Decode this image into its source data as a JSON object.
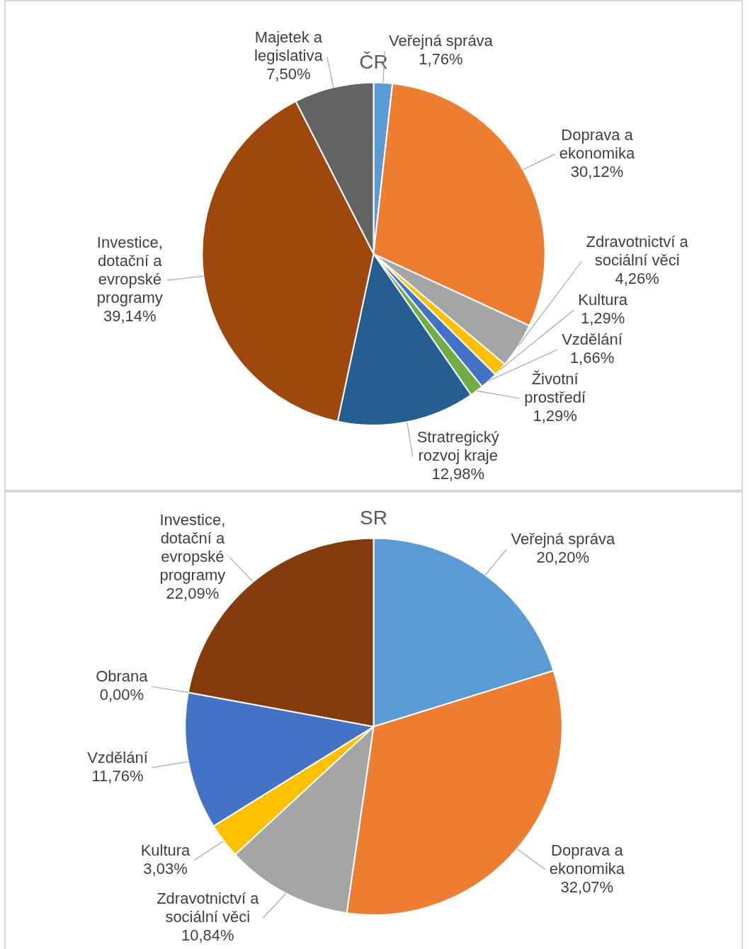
{
  "chart_data": [
    {
      "type": "pie",
      "title": "ČR",
      "categories": [
        "Veřejná správa",
        "Doprava a ekonomika",
        "Zdravotnictví a sociální věci",
        "Kultura",
        "Vzdělání",
        "Životní prostředí",
        "Stratregický rozvoj kraje",
        "Investice, dotační a evropské programy",
        "Majetek a legislativa"
      ],
      "values": [
        1.76,
        30.12,
        4.26,
        1.29,
        1.66,
        1.29,
        12.98,
        39.14,
        7.5
      ],
      "value_labels": [
        "1,76%",
        "30,12%",
        "4,26%",
        "1,29%",
        "1,66%",
        "1,29%",
        "12,98%",
        "39,14%",
        "7,50%"
      ],
      "colors": [
        "#5b9bd5",
        "#ed7d31",
        "#a5a5a5",
        "#ffc000",
        "#4472c4",
        "#70ad47",
        "#255e91",
        "#9e480e",
        "#636363"
      ],
      "legend": false
    },
    {
      "type": "pie",
      "title": "SR",
      "categories": [
        "Veřejná správa",
        "Doprava a ekonomika",
        "Zdravotnictví a sociální věci",
        "Kultura",
        "Vzdělání",
        "Obrana",
        "Investice, dotační a evropské programy"
      ],
      "values": [
        20.2,
        32.07,
        10.84,
        3.03,
        11.76,
        0.0,
        22.09
      ],
      "value_labels": [
        "20,20%",
        "32,07%",
        "10,84%",
        "3,03%",
        "11,76%",
        "0,00%",
        "22,09%"
      ],
      "colors": [
        "#5b9bd5",
        "#ed7d31",
        "#a5a5a5",
        "#ffc000",
        "#4472c4",
        "#70ad47",
        "#843c0c"
      ],
      "legend": false
    }
  ]
}
